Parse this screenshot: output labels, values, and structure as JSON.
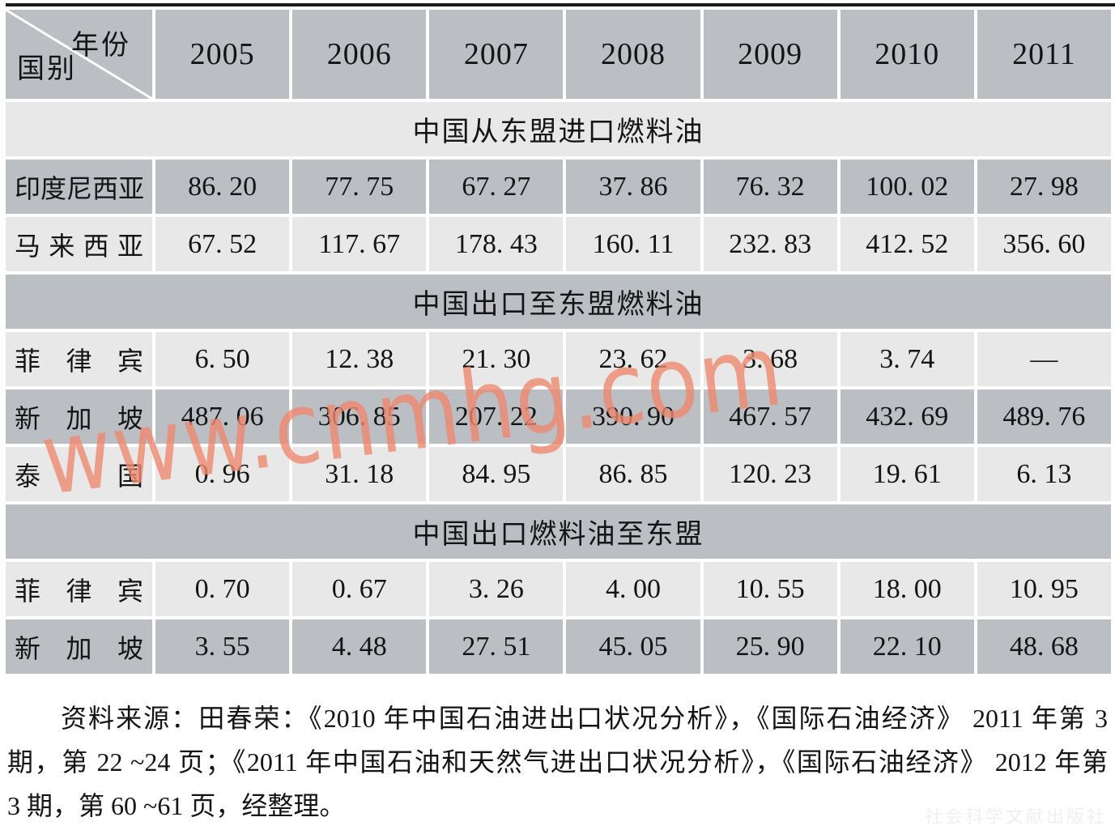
{
  "table": {
    "corner": {
      "top_right": "年份",
      "bottom_left": "国别"
    },
    "years": [
      "2005",
      "2006",
      "2007",
      "2008",
      "2009",
      "2010",
      "2011"
    ],
    "sections": [
      {
        "title": "中国从东盟进口燃料油",
        "rows": [
          {
            "country": "印度尼西亚",
            "values": [
              "86. 20",
              "77. 75",
              "67. 27",
              "37. 86",
              "76. 32",
              "100. 02",
              "27. 98"
            ]
          },
          {
            "country": "马来西亚",
            "values": [
              "67. 52",
              "117. 67",
              "178. 43",
              "160. 11",
              "232. 83",
              "412. 52",
              "356. 60"
            ]
          }
        ]
      },
      {
        "title": "中国出口至东盟燃料油",
        "rows": [
          {
            "country": "菲律宾",
            "values": [
              "6. 50",
              "12. 38",
              "21. 30",
              "23. 62",
              "3. 68",
              "3. 74",
              "—"
            ]
          },
          {
            "country": "新加坡",
            "values": [
              "487. 06",
              "306. 85",
              "207. 22",
              "390. 90",
              "467. 57",
              "432. 69",
              "489. 76"
            ]
          },
          {
            "country": "泰国",
            "values": [
              "0. 96",
              "31. 18",
              "84. 95",
              "86. 85",
              "120. 23",
              "19. 61",
              "6. 13"
            ]
          }
        ]
      },
      {
        "title": "中国出口燃料油至东盟",
        "rows": [
          {
            "country": "菲律宾",
            "values": [
              "0. 70",
              "0. 67",
              "3. 26",
              "4. 00",
              "10. 55",
              "18. 00",
              "10. 95"
            ]
          },
          {
            "country": "新加坡",
            "values": [
              "3. 55",
              "4. 48",
              "27. 51",
              "45. 05",
              "25. 90",
              "22. 10",
              "48. 68"
            ]
          }
        ]
      }
    ]
  },
  "source_note": {
    "lines": [
      "资料来源：田春荣：《2010 年中国石油进出口状况分析》，《国际石油经济》 2011 年第 3",
      "期，第 22 ~24 页；《2011 年中国石油和天然气进出口状况分析》，《国际石油经济》 2012 年第",
      "3 期，第 60 ~61 页，经整理。"
    ]
  },
  "watermark": {
    "text": "www.cnmhg.com",
    "color": "#ee886e"
  },
  "publisher_watermark": "社会科学文献出版社",
  "colors": {
    "row_dark": "#bbbec2",
    "row_light": "#e8e8e9",
    "top_rule": "#1b1b1b",
    "text": "#141414"
  }
}
